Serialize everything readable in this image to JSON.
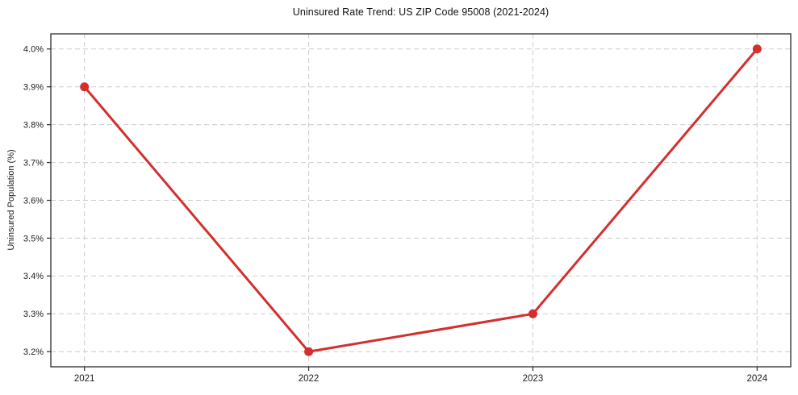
{
  "page": {
    "background": "#ffffff"
  },
  "chart_data": {
    "type": "line",
    "title": "Uninsured Rate Trend: US ZIP Code 95008 (2021-2024)",
    "xlabel": "",
    "ylabel": "Uninsured Population (%)",
    "categories": [
      2021,
      2022,
      2023,
      2024
    ],
    "x_tick_labels": [
      "2021",
      "2022",
      "2023",
      "2024"
    ],
    "series": [
      {
        "name": "Uninsured rate",
        "values": [
          3.9,
          3.2,
          3.3,
          4.0
        ],
        "color": "#d32f2f",
        "marker": "circle"
      }
    ],
    "y_ticks": [
      3.2,
      3.3,
      3.4,
      3.5,
      3.6,
      3.7,
      3.8,
      3.9,
      4.0
    ],
    "y_tick_labels": [
      "3.2%",
      "3.3%",
      "3.4%",
      "3.5%",
      "3.6%",
      "3.7%",
      "3.8%",
      "3.9%",
      "4.0%"
    ],
    "xlim": [
      2020.85,
      2024.15
    ],
    "ylim": [
      3.16,
      4.04
    ],
    "grid": true,
    "grid_style": "dashed",
    "legend": false,
    "style": {
      "grid_color": "#cccccc",
      "axis_border_color": "#2b2b2b",
      "tick_color": "#2b2b2b",
      "line_width": 3,
      "marker_radius": 5.5
    }
  }
}
